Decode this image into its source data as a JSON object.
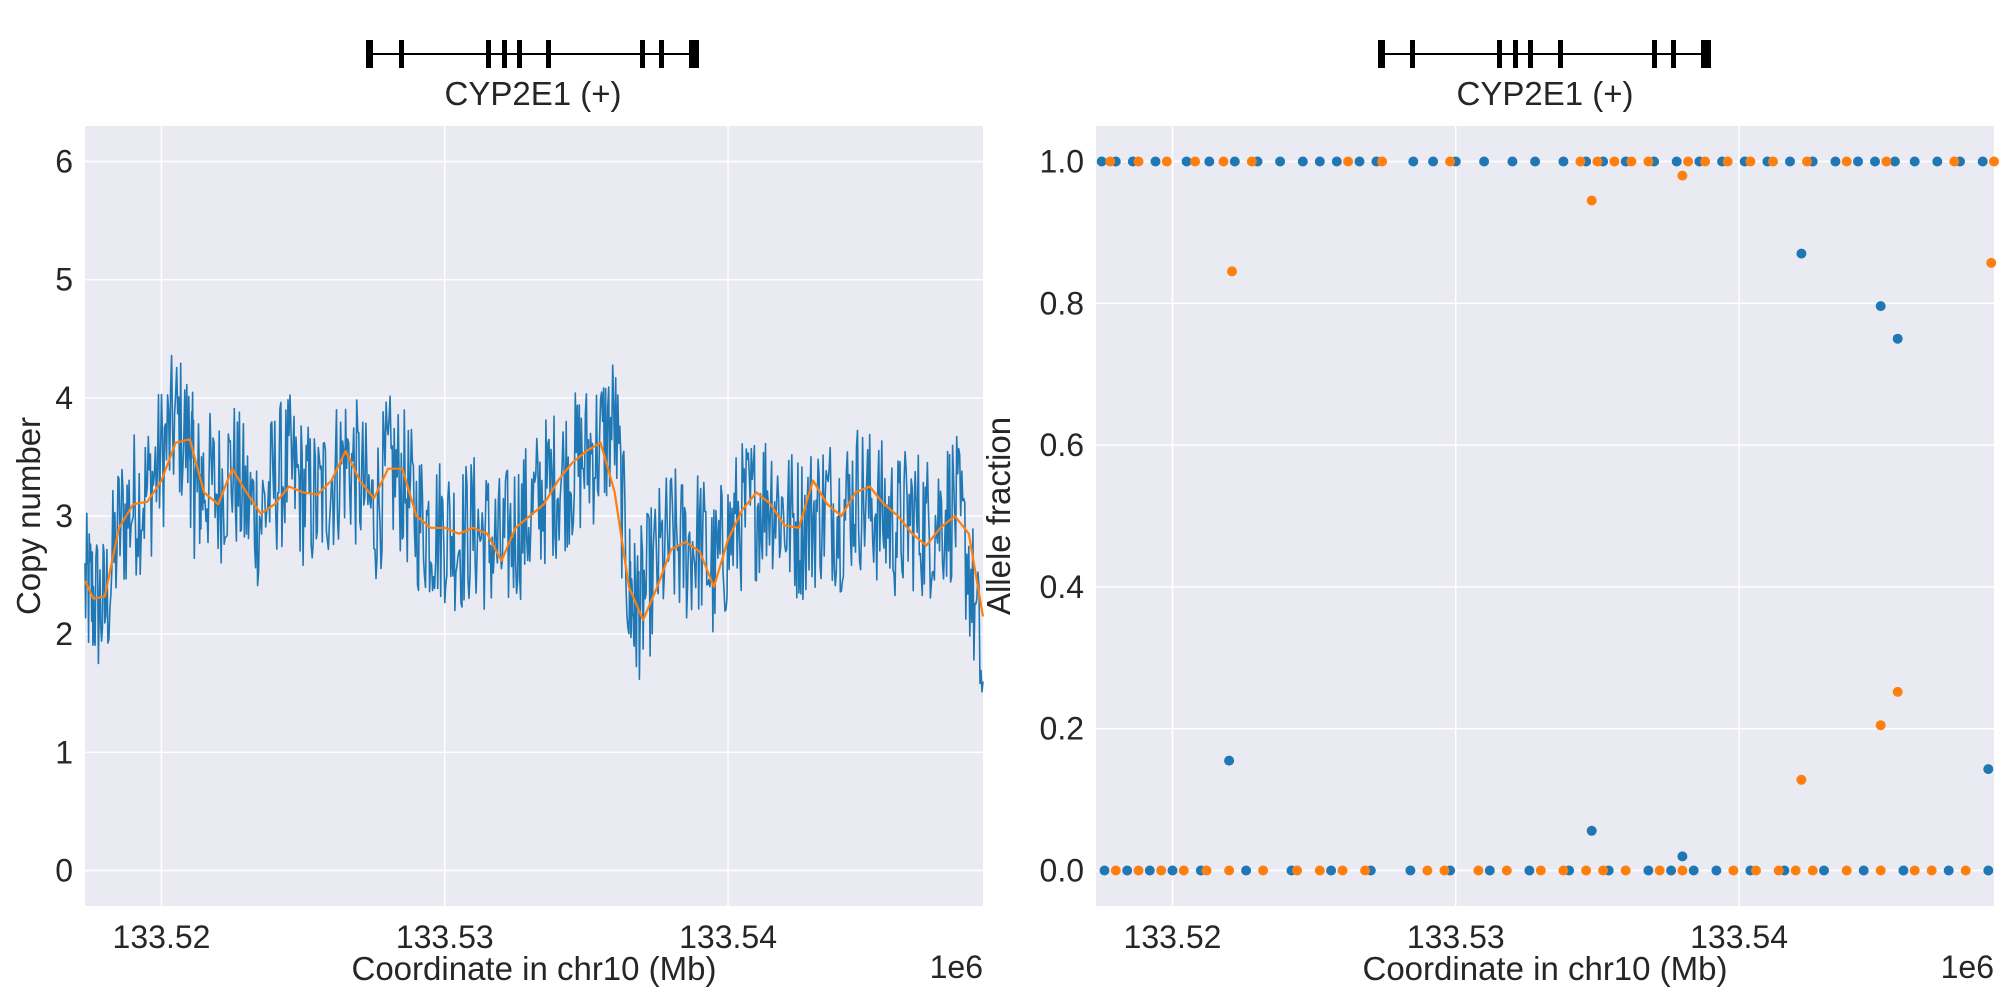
{
  "chart_data": [
    {
      "type": "line",
      "gene_track": {
        "label": "CYP2E1 (+)"
      },
      "xlabel": "Coordinate in chr10 (Mb)",
      "ylabel": "Copy number",
      "x_offset_label": "1e6",
      "xlim": [
        133.5173,
        133.549
      ],
      "ylim": [
        -0.3,
        6.3
      ],
      "xticks": [
        133.52,
        133.53,
        133.54
      ],
      "xtick_labels": [
        "133.52",
        "133.53",
        "133.54"
      ],
      "yticks": [
        0,
        1,
        2,
        3,
        4,
        5,
        6
      ],
      "ytick_labels": [
        "0",
        "1",
        "2",
        "3",
        "4",
        "5",
        "6"
      ],
      "grid": true,
      "series": [
        {
          "color": "#1f77b4",
          "style": "noisy-line",
          "x": [
            133.5173,
            133.5176,
            133.518,
            133.5185,
            133.519,
            133.5195,
            133.52,
            133.5205,
            133.521,
            133.5212,
            133.5215,
            133.522,
            133.5225,
            133.523,
            133.5235,
            133.524,
            133.5245,
            133.525,
            133.5255,
            133.526,
            133.5265,
            133.527,
            133.5275,
            133.528,
            133.5285,
            133.529,
            133.5295,
            133.53,
            133.5305,
            133.531,
            133.5315,
            133.532,
            133.5325,
            133.533,
            133.5335,
            133.534,
            133.5345,
            133.535,
            133.5355,
            133.536,
            133.5365,
            133.5367,
            133.537,
            133.5375,
            133.538,
            133.5385,
            133.539,
            133.5395,
            133.54,
            133.5405,
            133.541,
            133.5415,
            133.542,
            133.5425,
            133.543,
            133.5435,
            133.544,
            133.5445,
            133.545,
            133.5455,
            133.546,
            133.5465,
            133.547,
            133.5475,
            133.548,
            133.5485,
            133.549
          ],
          "values": [
            2.4,
            2.3,
            2.2,
            2.9,
            3.1,
            3.2,
            3.5,
            3.8,
            3.6,
            3.2,
            3.3,
            3.2,
            3.4,
            3.1,
            3.0,
            3.3,
            3.4,
            3.2,
            3.1,
            3.3,
            3.5,
            3.3,
            3.0,
            3.4,
            3.3,
            3.0,
            2.9,
            2.9,
            2.8,
            2.9,
            2.8,
            2.7,
            2.9,
            3.0,
            3.2,
            3.3,
            3.4,
            3.5,
            3.6,
            3.8,
            2.4,
            2.2,
            2.3,
            2.6,
            2.8,
            2.7,
            2.8,
            2.5,
            2.8,
            3.0,
            3.1,
            3.2,
            3.0,
            2.9,
            3.0,
            3.1,
            3.0,
            3.2,
            3.1,
            3.0,
            2.9,
            3.0,
            2.9,
            3.0,
            3.1,
            2.6,
            1.6
          ]
        },
        {
          "color": "#ff7f0e",
          "style": "smoothed-line",
          "x": [
            133.5173,
            133.5176,
            133.518,
            133.5185,
            133.519,
            133.5195,
            133.52,
            133.5205,
            133.521,
            133.5215,
            133.522,
            133.5225,
            133.523,
            133.5235,
            133.524,
            133.5245,
            133.525,
            133.5255,
            133.526,
            133.5265,
            133.527,
            133.5275,
            133.528,
            133.5285,
            133.529,
            133.5295,
            133.53,
            133.5305,
            133.531,
            133.5315,
            133.532,
            133.5325,
            133.533,
            133.5335,
            133.534,
            133.5345,
            133.535,
            133.5355,
            133.536,
            133.5365,
            133.537,
            133.5375,
            133.538,
            133.5385,
            133.539,
            133.5395,
            133.54,
            133.5405,
            133.541,
            133.5415,
            133.542,
            133.5425,
            133.543,
            133.5435,
            133.544,
            133.5445,
            133.545,
            133.5455,
            133.546,
            133.5465,
            133.547,
            133.5475,
            133.548,
            133.5485,
            133.549
          ],
          "values": [
            2.45,
            2.3,
            2.32,
            2.9,
            3.1,
            3.12,
            3.3,
            3.62,
            3.65,
            3.2,
            3.1,
            3.4,
            3.2,
            3.02,
            3.1,
            3.25,
            3.2,
            3.18,
            3.3,
            3.55,
            3.3,
            3.15,
            3.4,
            3.4,
            3.0,
            2.9,
            2.9,
            2.85,
            2.9,
            2.85,
            2.62,
            2.9,
            3.0,
            3.1,
            3.3,
            3.45,
            3.55,
            3.62,
            3.2,
            2.4,
            2.12,
            2.4,
            2.72,
            2.78,
            2.7,
            2.4,
            2.8,
            3.05,
            3.2,
            3.1,
            2.92,
            2.9,
            3.3,
            3.1,
            3.0,
            3.2,
            3.25,
            3.1,
            3.0,
            2.85,
            2.75,
            2.9,
            3.0,
            2.85,
            2.15
          ]
        }
      ]
    },
    {
      "type": "scatter",
      "gene_track": {
        "label": "CYP2E1 (+)"
      },
      "xlabel": "Coordinate in chr10 (Mb)",
      "ylabel": "Allele fraction",
      "x_offset_label": "1e6",
      "xlim": [
        133.5173,
        133.549
      ],
      "ylim": [
        -0.05,
        1.05
      ],
      "xticks": [
        133.52,
        133.53,
        133.54
      ],
      "xtick_labels": [
        "133.52",
        "133.53",
        "133.54"
      ],
      "yticks": [
        0.0,
        0.2,
        0.4,
        0.6,
        0.8,
        1.0
      ],
      "ytick_labels": [
        "0.0",
        "0.2",
        "0.4",
        "0.6",
        "0.8",
        "1.0"
      ],
      "grid": true,
      "series": [
        {
          "color": "#1f77b4",
          "points": [
            [
              133.522,
              0.155
            ],
            [
              133.5348,
              0.056
            ],
            [
              133.538,
              0.02
            ],
            [
              133.5422,
              0.87
            ],
            [
              133.545,
              0.796
            ],
            [
              133.5456,
              0.75
            ],
            [
              133.5488,
              0.143
            ],
            [
              133.5175,
              1
            ],
            [
              133.518,
              1
            ],
            [
              133.5186,
              1
            ],
            [
              133.5194,
              1
            ],
            [
              133.5205,
              1
            ],
            [
              133.5213,
              1
            ],
            [
              133.5222,
              1
            ],
            [
              133.523,
              1
            ],
            [
              133.5238,
              1
            ],
            [
              133.5246,
              1
            ],
            [
              133.5252,
              1
            ],
            [
              133.5258,
              1
            ],
            [
              133.5266,
              1
            ],
            [
              133.5272,
              1
            ],
            [
              133.5285,
              1
            ],
            [
              133.5292,
              1
            ],
            [
              133.53,
              1
            ],
            [
              133.531,
              1
            ],
            [
              133.532,
              1
            ],
            [
              133.5328,
              1
            ],
            [
              133.5338,
              1
            ],
            [
              133.5346,
              1
            ],
            [
              133.5352,
              1
            ],
            [
              133.536,
              1
            ],
            [
              133.537,
              1
            ],
            [
              133.5378,
              1
            ],
            [
              133.5386,
              1
            ],
            [
              133.5394,
              1
            ],
            [
              133.5402,
              1
            ],
            [
              133.541,
              1
            ],
            [
              133.5418,
              1
            ],
            [
              133.5426,
              1
            ],
            [
              133.5434,
              1
            ],
            [
              133.5442,
              1
            ],
            [
              133.5448,
              1
            ],
            [
              133.5455,
              1
            ],
            [
              133.5462,
              1
            ],
            [
              133.547,
              1
            ],
            [
              133.5478,
              1
            ],
            [
              133.5486,
              1
            ],
            [
              133.5176,
              0
            ],
            [
              133.5184,
              0
            ],
            [
              133.5192,
              0
            ],
            [
              133.52,
              0
            ],
            [
              133.521,
              0
            ],
            [
              133.5226,
              0
            ],
            [
              133.5242,
              0
            ],
            [
              133.5256,
              0
            ],
            [
              133.527,
              0
            ],
            [
              133.5284,
              0
            ],
            [
              133.5298,
              0
            ],
            [
              133.5312,
              0
            ],
            [
              133.5326,
              0
            ],
            [
              133.534,
              0
            ],
            [
              133.5354,
              0
            ],
            [
              133.5368,
              0
            ],
            [
              133.5376,
              0
            ],
            [
              133.5384,
              0
            ],
            [
              133.5392,
              0
            ],
            [
              133.5404,
              0
            ],
            [
              133.5416,
              0
            ],
            [
              133.543,
              0
            ],
            [
              133.5444,
              0
            ],
            [
              133.5458,
              0
            ],
            [
              133.5474,
              0
            ],
            [
              133.5488,
              0
            ]
          ]
        },
        {
          "color": "#ff7f0e",
          "points": [
            [
              133.5221,
              0.845
            ],
            [
              133.5348,
              0.945
            ],
            [
              133.538,
              0.98
            ],
            [
              133.5489,
              0.857
            ],
            [
              133.5422,
              0.128
            ],
            [
              133.545,
              0.205
            ],
            [
              133.5456,
              0.252
            ],
            [
              133.5178,
              1
            ],
            [
              133.5188,
              1
            ],
            [
              133.5198,
              1
            ],
            [
              133.5208,
              1
            ],
            [
              133.5218,
              1
            ],
            [
              133.5228,
              1
            ],
            [
              133.5262,
              1
            ],
            [
              133.5274,
              1
            ],
            [
              133.5298,
              1
            ],
            [
              133.5344,
              1
            ],
            [
              133.535,
              1
            ],
            [
              133.5356,
              1
            ],
            [
              133.5362,
              1
            ],
            [
              133.5368,
              1
            ],
            [
              133.5382,
              1
            ],
            [
              133.5388,
              1
            ],
            [
              133.5396,
              1
            ],
            [
              133.5404,
              1
            ],
            [
              133.5412,
              1
            ],
            [
              133.5424,
              1
            ],
            [
              133.5438,
              1
            ],
            [
              133.5452,
              1
            ],
            [
              133.5476,
              1
            ],
            [
              133.549,
              1
            ],
            [
              133.518,
              0
            ],
            [
              133.5188,
              0
            ],
            [
              133.5196,
              0
            ],
            [
              133.5204,
              0
            ],
            [
              133.5212,
              0
            ],
            [
              133.522,
              0
            ],
            [
              133.5232,
              0
            ],
            [
              133.5244,
              0
            ],
            [
              133.5252,
              0
            ],
            [
              133.526,
              0
            ],
            [
              133.5268,
              0
            ],
            [
              133.529,
              0
            ],
            [
              133.5296,
              0
            ],
            [
              133.5308,
              0
            ],
            [
              133.5318,
              0
            ],
            [
              133.533,
              0
            ],
            [
              133.5338,
              0
            ],
            [
              133.5346,
              0
            ],
            [
              133.5352,
              0
            ],
            [
              133.536,
              0
            ],
            [
              133.5372,
              0
            ],
            [
              133.538,
              0
            ],
            [
              133.5398,
              0
            ],
            [
              133.5406,
              0
            ],
            [
              133.5414,
              0
            ],
            [
              133.542,
              0
            ],
            [
              133.5426,
              0
            ],
            [
              133.5438,
              0
            ],
            [
              133.545,
              0
            ],
            [
              133.5462,
              0
            ],
            [
              133.5468,
              0
            ],
            [
              133.548,
              0
            ]
          ]
        }
      ]
    }
  ]
}
